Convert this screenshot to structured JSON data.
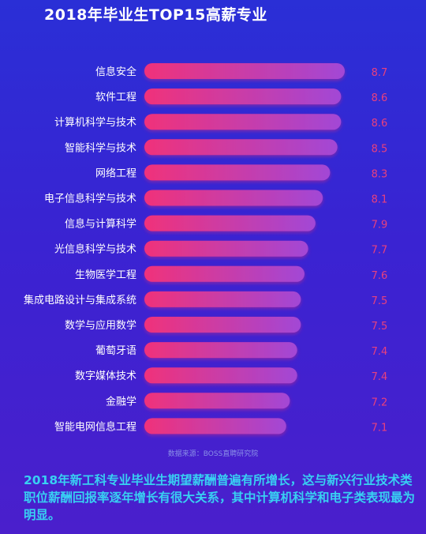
{
  "title": "2018年毕业生TOP15高薪专业",
  "source": "数据来源：BOSS直聘研究院",
  "summary": "2018年新工科专业毕业生期望薪酬普遍有所增长，这与新兴行业技术类职位薪酬回报率逐年增长有很大关系，其中计算机科学和电子类表现最为明显。",
  "colors": {
    "bar_start": "#f0327a",
    "bar_end": "#a247d6",
    "value_label": "#e8407e",
    "summary_text": "#38d0f2"
  },
  "chart_data": {
    "type": "bar",
    "orientation": "horizontal",
    "title": "2018年毕业生TOP15高薪专业",
    "categories": [
      "信息安全",
      "软件工程",
      "计算机科学与技术",
      "智能科学与技术",
      "网络工程",
      "电子信息科学与技术",
      "信息与计算科学",
      "光信息科学与技术",
      "生物医学工程",
      "集成电路设计与集成系统",
      "数学与应用数学",
      "葡萄牙语",
      "数字媒体技术",
      "金融学",
      "智能电网信息工程"
    ],
    "values": [
      8.7,
      8.6,
      8.6,
      8.5,
      8.3,
      8.1,
      7.9,
      7.7,
      7.6,
      7.5,
      7.5,
      7.4,
      7.4,
      7.2,
      7.1
    ],
    "value_labels": [
      "8.7",
      "8.6",
      "8.6",
      "8.5",
      "8.3",
      "8.1",
      "7.9",
      "7.7",
      "7.6",
      "7.5",
      "7.5",
      "7.4",
      "7.4",
      "7.2",
      "7.1"
    ],
    "xlabel": "",
    "ylabel": "",
    "grid": false,
    "legend": "none"
  }
}
